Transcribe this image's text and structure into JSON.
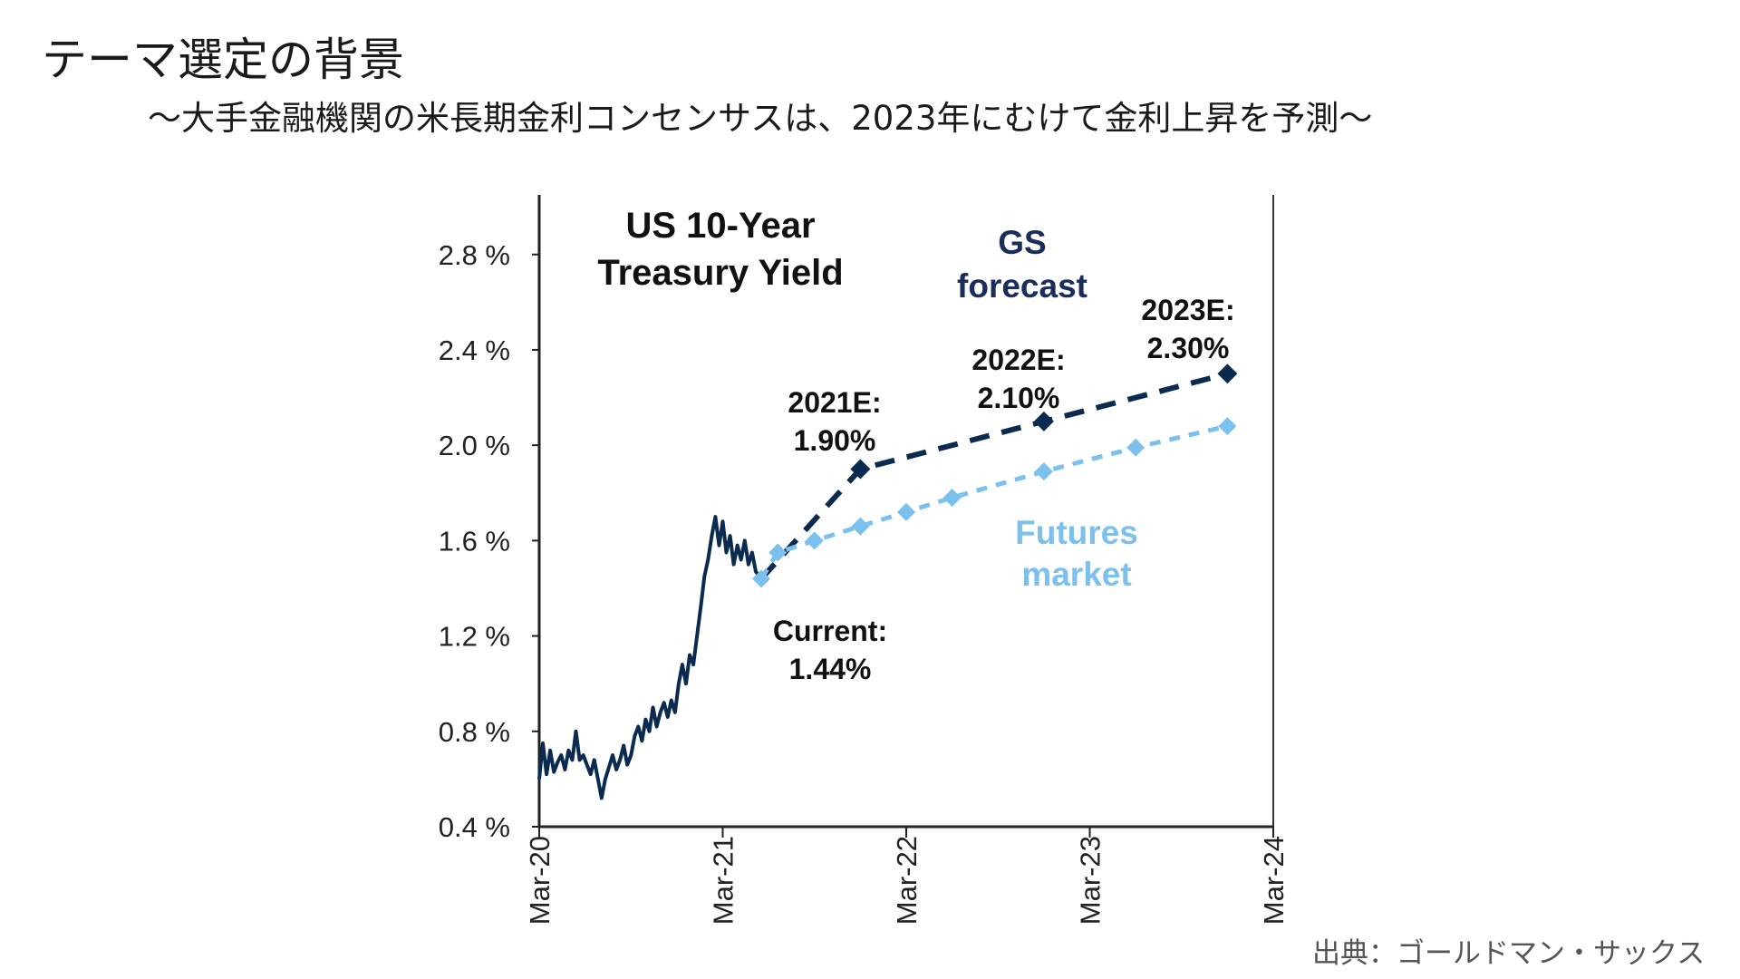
{
  "slide": {
    "title": "テーマ選定の背景",
    "subtitle": "〜大手金融機関の米長期金利コンセンサスは、2023年にむけて金利上昇を予測〜",
    "source": "出典：ゴールドマン・サックス"
  },
  "chart_data": {
    "type": "line",
    "title": "US 10-Year Treasury Yield",
    "title_lines": [
      "US 10-Year",
      "Treasury Yield"
    ],
    "x_ticks": [
      "Mar-20",
      "Mar-21",
      "Mar-22",
      "Mar-23",
      "Mar-24"
    ],
    "xlim": [
      2020.0,
      2024.0
    ],
    "y_ticks": [
      "0.4 %",
      "0.8 %",
      "1.2 %",
      "1.6 %",
      "2.0 %",
      "2.4 %",
      "2.8 %"
    ],
    "ylim": [
      0.4,
      3.05
    ],
    "colors": {
      "historical": "#0b2a4f",
      "gs_forecast": "#0b2a4f",
      "futures": "#7cc0ee",
      "gs_label": "#1b2d5a",
      "futures_label": "#7cc0ee"
    },
    "series": [
      {
        "key": "historical",
        "style": "solid",
        "points": [
          [
            2020.0,
            0.6
          ],
          [
            2020.02,
            0.75
          ],
          [
            2020.04,
            0.62
          ],
          [
            2020.06,
            0.72
          ],
          [
            2020.08,
            0.63
          ],
          [
            2020.1,
            0.67
          ],
          [
            2020.12,
            0.7
          ],
          [
            2020.14,
            0.64
          ],
          [
            2020.16,
            0.72
          ],
          [
            2020.18,
            0.68
          ],
          [
            2020.2,
            0.8
          ],
          [
            2020.22,
            0.68
          ],
          [
            2020.24,
            0.7
          ],
          [
            2020.26,
            0.66
          ],
          [
            2020.28,
            0.62
          ],
          [
            2020.3,
            0.68
          ],
          [
            2020.32,
            0.6
          ],
          [
            2020.34,
            0.52
          ],
          [
            2020.36,
            0.6
          ],
          [
            2020.38,
            0.65
          ],
          [
            2020.4,
            0.7
          ],
          [
            2020.42,
            0.64
          ],
          [
            2020.44,
            0.68
          ],
          [
            2020.46,
            0.74
          ],
          [
            2020.48,
            0.66
          ],
          [
            2020.5,
            0.7
          ],
          [
            2020.52,
            0.78
          ],
          [
            2020.54,
            0.82
          ],
          [
            2020.56,
            0.76
          ],
          [
            2020.58,
            0.85
          ],
          [
            2020.6,
            0.8
          ],
          [
            2020.62,
            0.9
          ],
          [
            2020.64,
            0.82
          ],
          [
            2020.66,
            0.88
          ],
          [
            2020.68,
            0.92
          ],
          [
            2020.7,
            0.86
          ],
          [
            2020.72,
            0.93
          ],
          [
            2020.74,
            0.88
          ],
          [
            2020.76,
            1.0
          ],
          [
            2020.78,
            1.08
          ],
          [
            2020.8,
            1.0
          ],
          [
            2020.82,
            1.12
          ],
          [
            2020.84,
            1.08
          ],
          [
            2020.86,
            1.2
          ],
          [
            2020.88,
            1.32
          ],
          [
            2020.9,
            1.45
          ],
          [
            2020.92,
            1.52
          ],
          [
            2020.94,
            1.62
          ],
          [
            2020.96,
            1.7
          ],
          [
            2020.98,
            1.58
          ],
          [
            2021.0,
            1.68
          ],
          [
            2021.02,
            1.55
          ],
          [
            2021.04,
            1.62
          ],
          [
            2021.06,
            1.5
          ],
          [
            2021.08,
            1.58
          ],
          [
            2021.1,
            1.52
          ],
          [
            2021.12,
            1.6
          ],
          [
            2021.14,
            1.5
          ],
          [
            2021.16,
            1.55
          ],
          [
            2021.18,
            1.47
          ],
          [
            2021.21,
            1.44
          ]
        ]
      },
      {
        "key": "gs_forecast",
        "name": "GS forecast",
        "style": "dashed",
        "points": [
          [
            2021.21,
            1.44
          ],
          [
            2021.75,
            1.9
          ],
          [
            2022.75,
            2.1
          ],
          [
            2023.75,
            2.3
          ]
        ]
      },
      {
        "key": "futures",
        "name": "Futures market",
        "style": "dashed",
        "points": [
          [
            2021.21,
            1.44
          ],
          [
            2021.3,
            1.55
          ],
          [
            2021.5,
            1.6
          ],
          [
            2021.75,
            1.66
          ],
          [
            2022.0,
            1.72
          ],
          [
            2022.25,
            1.78
          ],
          [
            2022.75,
            1.89
          ],
          [
            2023.25,
            1.99
          ],
          [
            2023.75,
            2.08
          ]
        ]
      }
    ],
    "annotations": {
      "gs_label": [
        "GS",
        "forecast"
      ],
      "futures_label": [
        "Futures",
        "market"
      ],
      "current": [
        "Current:",
        "1.44%"
      ],
      "e2021": [
        "2021E:",
        "1.90%"
      ],
      "e2022": [
        "2022E:",
        "2.10%"
      ],
      "e2023": [
        "2023E:",
        "2.30%"
      ]
    }
  }
}
